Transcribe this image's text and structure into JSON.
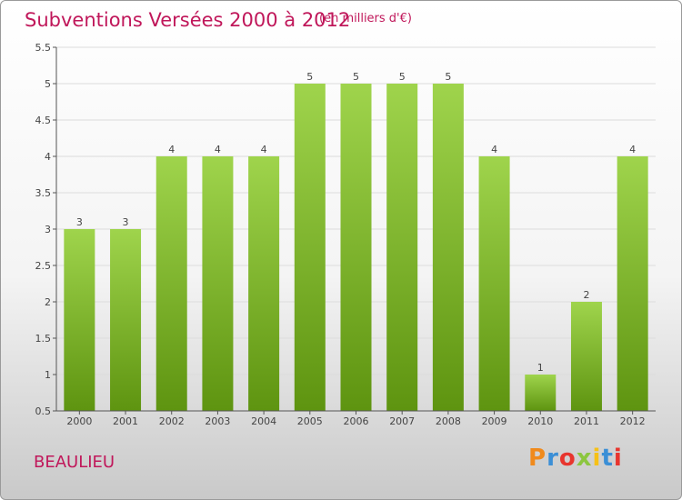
{
  "header": {
    "title": "Subventions Versées 2000 à 2012",
    "subtitle": "(en milliers d'€)"
  },
  "footer": {
    "location": "BEAULIEU",
    "brand": "Proxiti",
    "brand_colors": [
      "#f08a1c",
      "#3b8fd6",
      "#e8352e",
      "#8cc63f",
      "#f6c117",
      "#3b8fd6",
      "#e8352e"
    ]
  },
  "colors": {
    "title": "#c0175a",
    "bar_top": "#9fd44c",
    "bar_bottom": "#5e9410",
    "axis": "#555555"
  },
  "chart_data": {
    "type": "bar",
    "title": "Subventions Versées 2000 à 2012",
    "xlabel": "",
    "ylabel": "",
    "categories": [
      "2000",
      "2001",
      "2002",
      "2003",
      "2004",
      "2005",
      "2006",
      "2007",
      "2008",
      "2009",
      "2010",
      "2011",
      "2012"
    ],
    "values": [
      3,
      3,
      4,
      4,
      4,
      5,
      5,
      5,
      5,
      4,
      1,
      2,
      4
    ],
    "ylim": [
      0.5,
      5.5
    ],
    "yticks": [
      "0.5",
      "1",
      "1.5",
      "2",
      "2.5",
      "3",
      "3.5",
      "4",
      "4.5",
      "5",
      "5.5"
    ],
    "grid": true,
    "legend": "none"
  }
}
